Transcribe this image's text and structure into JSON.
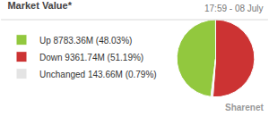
{
  "chart_data": {
    "type": "pie",
    "title": "Market Value*",
    "subtitle": "17:59 - 08 July",
    "categories": [
      "Up 8783.36M (48.03%)",
      "Down 9361.74M (51.19%)",
      "Unchanged 143.66M (0.79%)"
    ],
    "values": [
      8783.36,
      9361.74,
      143.66
    ],
    "colors": [
      "#92c83e",
      "#cc3333",
      "#e4e4e4"
    ],
    "legend": "left",
    "annotations": [
      "Sharenet"
    ]
  }
}
